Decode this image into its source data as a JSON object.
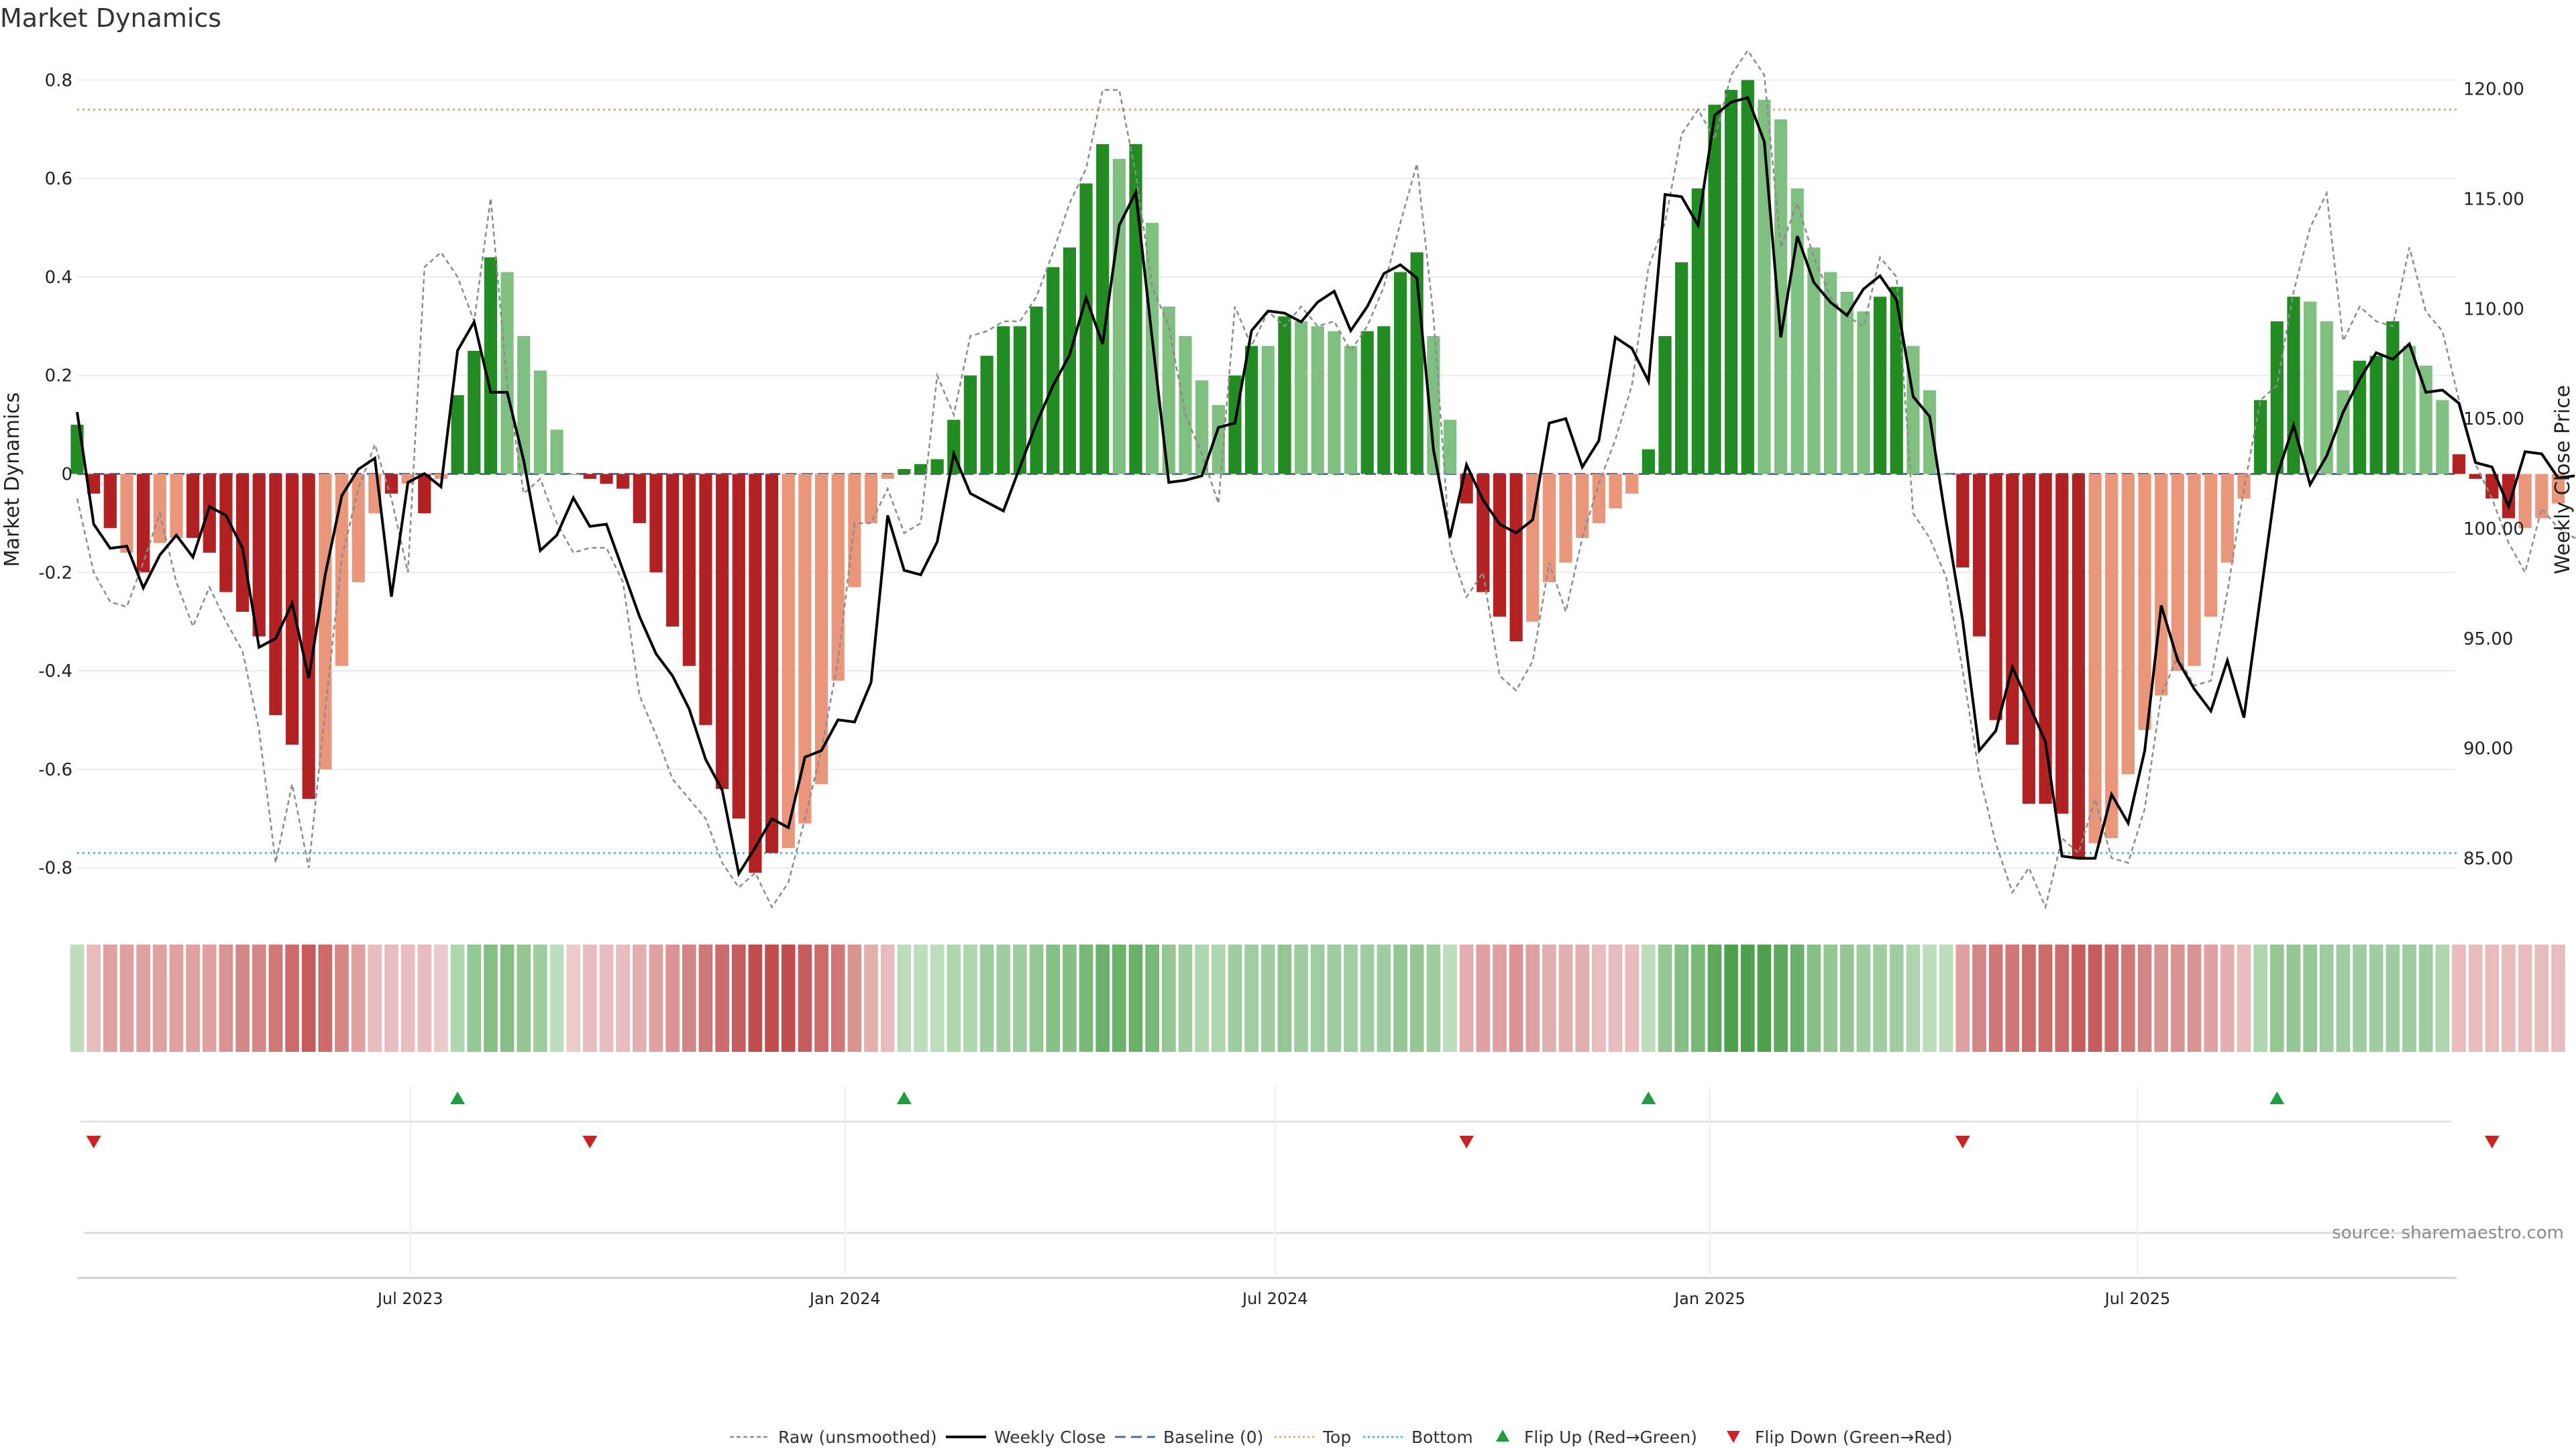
{
  "chart_data": {
    "type": "bar",
    "title": "Market Dynamics",
    "ylabel_left": "Market Dynamics",
    "ylabel_right": "Weekly Close Price",
    "source": "source: sharemaestro.com",
    "ylim_left": [
      -0.87,
      0.84
    ],
    "yticks_left": [
      "0.8",
      "0.6",
      "0.4",
      "0.2",
      "0",
      "-0.2",
      "-0.4",
      "-0.6",
      "-0.8"
    ],
    "ylim_right": [
      83.0,
      121.3
    ],
    "yticks_right": [
      "120.00",
      "115.00",
      "110.00",
      "105.00",
      "100.00",
      "95.00",
      "90.00",
      "85.00"
    ],
    "xlim": [
      "2023-02-10",
      "2025-11-13"
    ],
    "x_ticks": [
      {
        "date": "2023-07-01",
        "label": "Jul 2023"
      },
      {
        "date": "2024-01-01",
        "label": "Jan 2024"
      },
      {
        "date": "2024-07-01",
        "label": "Jul 2024"
      },
      {
        "date": "2025-01-01",
        "label": "Jan 2025"
      },
      {
        "date": "2025-07-01",
        "label": "Jul 2025"
      }
    ],
    "first_week": "2023-02-10",
    "week_step_days": 7,
    "grid": true,
    "legend_position": "bottom-center",
    "top_line": 0.74,
    "bottom_line": -0.77,
    "colors": {
      "up_strong": "#228b22",
      "up_weak": "#7fbf7f",
      "down_strong": "#b22222",
      "down_weak": "#e9967a",
      "raw": "#8c8c8c",
      "close": "#000000",
      "baseline": "#4a6fa5",
      "top": "#f0a080",
      "bottom": "#40c0d0",
      "flip_up": "#1e9e3e",
      "flip_down": "#d02020"
    },
    "bars": [
      0.1,
      -0.04,
      -0.11,
      -0.16,
      -0.2,
      -0.14,
      -0.13,
      -0.13,
      -0.16,
      -0.24,
      -0.28,
      -0.33,
      -0.49,
      -0.55,
      -0.66,
      -0.6,
      -0.39,
      -0.22,
      -0.08,
      -0.04,
      -0.02,
      -0.08,
      -0.01,
      0.16,
      0.25,
      0.44,
      0.41,
      0.28,
      0.21,
      0.09,
      0.0,
      -0.01,
      -0.02,
      -0.03,
      -0.1,
      -0.2,
      -0.31,
      -0.39,
      -0.51,
      -0.64,
      -0.7,
      -0.81,
      -0.77,
      -0.76,
      -0.71,
      -0.63,
      -0.42,
      -0.23,
      -0.1,
      -0.01,
      0.01,
      0.02,
      0.03,
      0.11,
      0.2,
      0.24,
      0.3,
      0.3,
      0.34,
      0.42,
      0.46,
      0.59,
      0.67,
      0.64,
      0.67,
      0.51,
      0.34,
      0.28,
      0.19,
      0.14,
      0.2,
      0.26,
      0.26,
      0.32,
      0.31,
      0.3,
      0.29,
      0.26,
      0.29,
      0.3,
      0.41,
      0.45,
      0.28,
      0.11,
      -0.06,
      -0.24,
      -0.29,
      -0.34,
      -0.3,
      -0.22,
      -0.18,
      -0.13,
      -0.1,
      -0.07,
      -0.04,
      0.05,
      0.28,
      0.43,
      0.58,
      0.75,
      0.78,
      0.8,
      0.76,
      0.72,
      0.58,
      0.46,
      0.41,
      0.37,
      0.33,
      0.36,
      0.38,
      0.26,
      0.17,
      0.0,
      -0.19,
      -0.33,
      -0.5,
      -0.55,
      -0.67,
      -0.67,
      -0.69,
      -0.78,
      -0.75,
      -0.74,
      -0.61,
      -0.52,
      -0.45,
      -0.4,
      -0.39,
      -0.29,
      -0.18,
      -0.05,
      0.15,
      0.31,
      0.36,
      0.35,
      0.31,
      0.17,
      0.23,
      0.24,
      0.31,
      0.26,
      0.22,
      0.15,
      0.04,
      -0.01,
      -0.05,
      -0.09,
      -0.11,
      -0.09,
      -0.06
    ],
    "bar_shade": [
      "up_strong",
      "down_strong",
      "down_strong",
      "down_weak",
      "down_strong",
      "down_weak",
      "down_weak",
      "down_strong",
      "down_strong",
      "down_strong",
      "down_strong",
      "down_strong",
      "down_strong",
      "down_strong",
      "down_strong",
      "down_weak",
      "down_weak",
      "down_weak",
      "down_weak",
      "down_strong",
      "down_weak",
      "down_strong",
      "down_weak",
      "up_strong",
      "up_strong",
      "up_strong",
      "up_weak",
      "up_weak",
      "up_weak",
      "up_weak",
      "up_weak",
      "down_strong",
      "down_strong",
      "down_strong",
      "down_strong",
      "down_strong",
      "down_strong",
      "down_strong",
      "down_strong",
      "down_strong",
      "down_strong",
      "down_strong",
      "down_strong",
      "down_weak",
      "down_weak",
      "down_weak",
      "down_weak",
      "down_weak",
      "down_weak",
      "down_weak",
      "up_strong",
      "up_strong",
      "up_strong",
      "up_strong",
      "up_strong",
      "up_strong",
      "up_strong",
      "up_strong",
      "up_strong",
      "up_strong",
      "up_strong",
      "up_strong",
      "up_strong",
      "up_weak",
      "up_strong",
      "up_weak",
      "up_weak",
      "up_weak",
      "up_weak",
      "up_weak",
      "up_strong",
      "up_strong",
      "up_weak",
      "up_strong",
      "up_weak",
      "up_weak",
      "up_weak",
      "up_weak",
      "up_strong",
      "up_strong",
      "up_strong",
      "up_strong",
      "up_weak",
      "up_weak",
      "down_strong",
      "down_strong",
      "down_strong",
      "down_strong",
      "down_weak",
      "down_weak",
      "down_weak",
      "down_weak",
      "down_weak",
      "down_weak",
      "down_weak",
      "up_strong",
      "up_strong",
      "up_strong",
      "up_strong",
      "up_strong",
      "up_strong",
      "up_strong",
      "up_weak",
      "up_weak",
      "up_weak",
      "up_weak",
      "up_weak",
      "up_weak",
      "up_weak",
      "up_strong",
      "up_strong",
      "up_weak",
      "up_weak",
      "up_weak",
      "down_strong",
      "down_strong",
      "down_strong",
      "down_strong",
      "down_strong",
      "down_strong",
      "down_strong",
      "down_strong",
      "down_weak",
      "down_weak",
      "down_weak",
      "down_weak",
      "down_weak",
      "down_weak",
      "down_weak",
      "down_weak",
      "down_weak",
      "down_weak",
      "up_strong",
      "up_strong",
      "up_strong",
      "up_weak",
      "up_weak",
      "up_weak",
      "up_strong",
      "up_strong",
      "up_strong",
      "up_weak",
      "up_weak",
      "up_weak",
      "down_strong",
      "down_strong",
      "down_strong",
      "down_strong",
      "down_weak",
      "down_weak",
      "down_weak"
    ],
    "raw": [
      -0.05,
      -0.2,
      -0.26,
      -0.27,
      -0.18,
      -0.08,
      -0.22,
      -0.31,
      -0.23,
      -0.3,
      -0.36,
      -0.52,
      -0.79,
      -0.63,
      -0.8,
      -0.48,
      -0.17,
      -0.03,
      0.06,
      -0.05,
      -0.2,
      0.42,
      0.45,
      0.4,
      0.31,
      0.56,
      0.18,
      -0.04,
      -0.01,
      -0.1,
      -0.16,
      -0.15,
      -0.15,
      -0.22,
      -0.45,
      -0.53,
      -0.62,
      -0.66,
      -0.7,
      -0.79,
      -0.84,
      -0.81,
      -0.88,
      -0.83,
      -0.7,
      -0.56,
      -0.38,
      -0.1,
      -0.1,
      -0.03,
      -0.12,
      -0.1,
      0.2,
      0.12,
      0.28,
      0.29,
      0.31,
      0.31,
      0.36,
      0.45,
      0.55,
      0.62,
      0.78,
      0.78,
      0.61,
      0.38,
      0.3,
      0.12,
      0.04,
      -0.06,
      0.34,
      0.26,
      0.33,
      0.3,
      0.34,
      0.3,
      0.31,
      0.25,
      0.3,
      0.38,
      0.51,
      0.63,
      0.32,
      -0.15,
      -0.25,
      -0.2,
      -0.41,
      -0.44,
      -0.38,
      -0.18,
      -0.28,
      -0.13,
      -0.02,
      0.07,
      0.18,
      0.42,
      0.51,
      0.69,
      0.74,
      0.68,
      0.81,
      0.86,
      0.81,
      0.46,
      0.55,
      0.44,
      0.36,
      0.32,
      0.3,
      0.44,
      0.4,
      -0.08,
      -0.13,
      -0.21,
      -0.4,
      -0.61,
      -0.75,
      -0.85,
      -0.8,
      -0.88,
      -0.74,
      -0.77,
      -0.66,
      -0.78,
      -0.79,
      -0.68,
      -0.45,
      -0.37,
      -0.43,
      -0.42,
      -0.24,
      -0.03,
      0.15,
      0.18,
      0.37,
      0.5,
      0.57,
      0.27,
      0.34,
      0.31,
      0.3,
      0.46,
      0.33,
      0.29,
      0.15,
      0.02,
      -0.05,
      -0.14,
      -0.2,
      -0.07,
      -0.11,
      -0.13,
      -0.07
    ],
    "close": [
      105.3,
      100.2,
      99.1,
      99.2,
      97.3,
      98.8,
      99.7,
      98.7,
      101.0,
      100.6,
      99.1,
      94.6,
      95.0,
      96.6,
      93.2,
      97.9,
      101.5,
      102.7,
      103.2,
      96.9,
      102.1,
      102.5,
      101.9,
      108.1,
      109.4,
      106.2,
      106.2,
      103.1,
      99.0,
      99.7,
      101.4,
      100.1,
      100.2,
      98.1,
      96.0,
      94.3,
      93.3,
      91.8,
      89.5,
      88.1,
      84.3,
      85.5,
      86.8,
      86.4,
      89.6,
      89.9,
      91.3,
      91.2,
      93.0,
      100.6,
      98.1,
      97.9,
      99.4,
      103.4,
      101.6,
      101.2,
      100.8,
      102.8,
      104.8,
      106.5,
      107.9,
      110.5,
      108.4,
      113.8,
      115.3,
      108.6,
      102.1,
      102.2,
      102.4,
      104.6,
      104.8,
      109.0,
      109.9,
      109.8,
      109.4,
      110.3,
      110.8,
      109.0,
      110.1,
      111.6,
      112.0,
      111.4,
      103.6,
      99.6,
      102.9,
      101.3,
      100.2,
      99.8,
      100.4,
      104.8,
      105.0,
      102.8,
      104.0,
      108.7,
      108.2,
      106.7,
      115.2,
      115.1,
      113.8,
      118.8,
      119.4,
      119.6,
      117.6,
      108.7,
      113.3,
      111.2,
      110.3,
      109.7,
      110.9,
      111.5,
      110.4,
      106.0,
      105.1,
      100.3,
      95.8,
      89.9,
      90.8,
      93.7,
      92.0,
      90.3,
      85.1,
      85.0,
      85.0,
      87.9,
      86.6,
      89.9,
      96.5,
      94.0,
      92.7,
      91.7,
      94.0,
      91.4,
      96.9,
      102.4,
      104.7,
      102.0,
      103.3,
      105.3,
      106.8,
      108.0,
      107.7,
      108.4,
      106.2,
      106.3,
      105.7,
      103.0,
      102.8,
      101.0,
      103.5,
      103.4,
      102.3,
      102.4
    ],
    "heat": [
      0.2,
      -0.2,
      -0.4,
      -0.4,
      -0.4,
      -0.4,
      -0.4,
      -0.4,
      -0.4,
      -0.5,
      -0.6,
      -0.6,
      -0.7,
      -0.8,
      -0.9,
      -0.8,
      -0.6,
      -0.4,
      -0.2,
      -0.2,
      -0.2,
      -0.2,
      -0.1,
      0.3,
      0.5,
      0.6,
      0.6,
      0.5,
      0.4,
      0.2,
      -0.1,
      -0.2,
      -0.2,
      -0.2,
      -0.3,
      -0.4,
      -0.5,
      -0.6,
      -0.7,
      -0.8,
      -0.9,
      -1.0,
      -1.0,
      -1.0,
      -0.9,
      -0.8,
      -0.7,
      -0.5,
      -0.3,
      -0.2,
      0.2,
      0.2,
      0.2,
      0.3,
      0.3,
      0.4,
      0.4,
      0.4,
      0.5,
      0.6,
      0.6,
      0.7,
      0.8,
      0.8,
      0.8,
      0.7,
      0.5,
      0.4,
      0.3,
      0.3,
      0.4,
      0.4,
      0.4,
      0.5,
      0.4,
      0.4,
      0.4,
      0.4,
      0.4,
      0.4,
      0.5,
      0.5,
      0.4,
      0.2,
      -0.3,
      -0.4,
      -0.4,
      -0.5,
      -0.4,
      -0.3,
      -0.3,
      -0.3,
      -0.2,
      -0.2,
      -0.2,
      0.2,
      0.5,
      0.6,
      0.7,
      0.9,
      1.0,
      1.0,
      1.0,
      0.9,
      0.8,
      0.6,
      0.5,
      0.5,
      0.4,
      0.4,
      0.4,
      0.3,
      0.2,
      0.2,
      -0.4,
      -0.6,
      -0.7,
      -0.7,
      -0.8,
      -0.8,
      -0.8,
      -0.9,
      -0.9,
      -0.8,
      -0.7,
      -0.6,
      -0.5,
      -0.5,
      -0.5,
      -0.4,
      -0.3,
      -0.2,
      0.3,
      0.5,
      0.5,
      0.5,
      0.4,
      0.4,
      0.4,
      0.4,
      0.4,
      0.4,
      0.4,
      0.3,
      -0.2,
      -0.2,
      -0.2,
      -0.2,
      -0.2,
      -0.2,
      -0.2
    ],
    "flip_up_weeks": [
      23,
      50,
      95,
      133
    ],
    "flip_down_weeks": [
      1,
      31,
      84,
      114,
      146
    ],
    "legend": [
      "Raw (unsmoothed)",
      "Weekly Close",
      "Baseline (0)",
      "Top",
      "Bottom",
      "Flip Up (Red→Green)",
      "Flip Down (Green→Red)"
    ]
  }
}
